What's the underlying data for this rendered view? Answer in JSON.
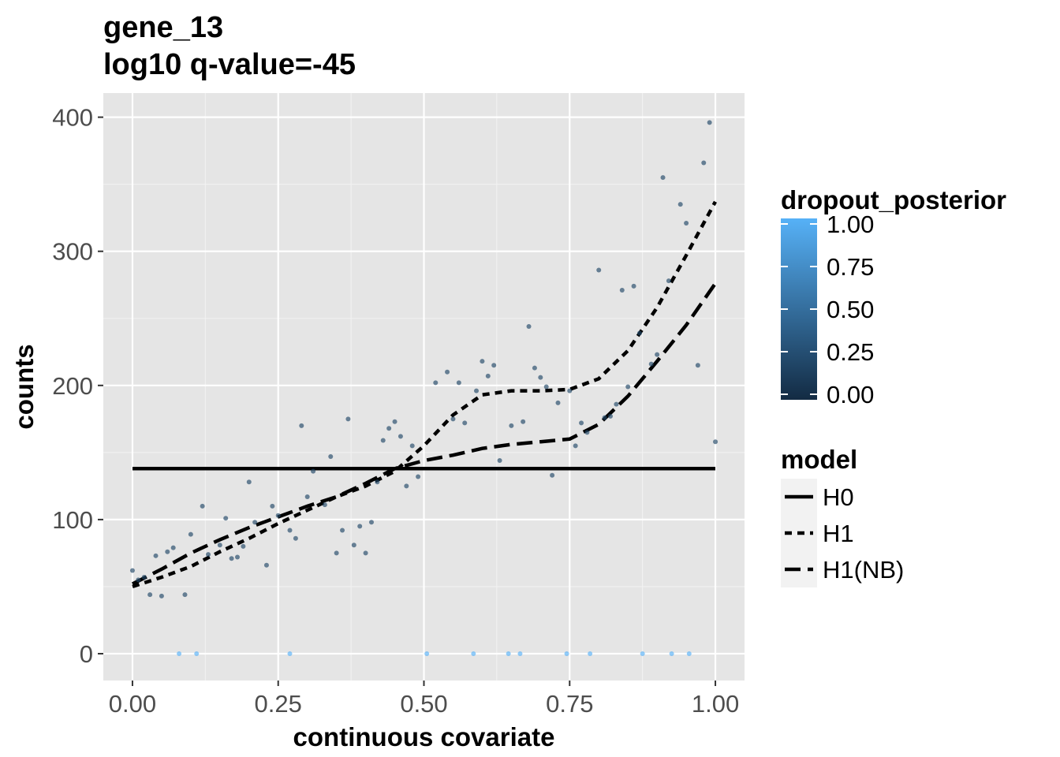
{
  "chart_data": {
    "type": "scatter",
    "title": "gene_13",
    "subtitle": "log10 q-value=-45",
    "xlabel": "continuous covariate",
    "ylabel": "counts",
    "xlim": [
      -0.05,
      1.05
    ],
    "ylim": [
      -20,
      418
    ],
    "x_ticks": [
      0.0,
      0.25,
      0.5,
      0.75,
      1.0
    ],
    "x_tick_labels": [
      "0.00",
      "0.25",
      "0.50",
      "0.75",
      "1.00"
    ],
    "y_ticks": [
      0,
      100,
      200,
      300,
      400
    ],
    "y_tick_labels": [
      "0",
      "100",
      "200",
      "300",
      "400"
    ],
    "grid": true,
    "background": "#e5e5e5",
    "color_legend": {
      "title": "dropout_posterior",
      "ticks": [
        1.0,
        0.75,
        0.5,
        0.25,
        0.0
      ],
      "tick_labels": [
        "1.00",
        "0.75",
        "0.50",
        "0.25",
        "0.00"
      ],
      "low_color": "#132b43",
      "high_color": "#56b1f7"
    },
    "model_legend": {
      "title": "model",
      "entries": [
        "H0",
        "H1",
        "H1(NB)"
      ]
    },
    "points": [
      {
        "x": 0.0,
        "y": 62,
        "dp": 0.2
      },
      {
        "x": 0.01,
        "y": 55,
        "dp": 0.2
      },
      {
        "x": 0.02,
        "y": 57,
        "dp": 0.2
      },
      {
        "x": 0.03,
        "y": 44,
        "dp": 0.2
      },
      {
        "x": 0.04,
        "y": 73,
        "dp": 0.2
      },
      {
        "x": 0.05,
        "y": 43,
        "dp": 0.2
      },
      {
        "x": 0.06,
        "y": 76,
        "dp": 0.2
      },
      {
        "x": 0.07,
        "y": 79,
        "dp": 0.2
      },
      {
        "x": 0.09,
        "y": 44,
        "dp": 0.2
      },
      {
        "x": 0.1,
        "y": 89,
        "dp": 0.2
      },
      {
        "x": 0.12,
        "y": 110,
        "dp": 0.2
      },
      {
        "x": 0.13,
        "y": 74,
        "dp": 0.2
      },
      {
        "x": 0.15,
        "y": 81,
        "dp": 0.2
      },
      {
        "x": 0.16,
        "y": 101,
        "dp": 0.2
      },
      {
        "x": 0.17,
        "y": 71,
        "dp": 0.2
      },
      {
        "x": 0.18,
        "y": 72,
        "dp": 0.2
      },
      {
        "x": 0.19,
        "y": 80,
        "dp": 0.2
      },
      {
        "x": 0.2,
        "y": 128,
        "dp": 0.2
      },
      {
        "x": 0.21,
        "y": 98,
        "dp": 0.2
      },
      {
        "x": 0.23,
        "y": 66,
        "dp": 0.2
      },
      {
        "x": 0.24,
        "y": 110,
        "dp": 0.2
      },
      {
        "x": 0.25,
        "y": 103,
        "dp": 0.2
      },
      {
        "x": 0.27,
        "y": 92,
        "dp": 0.2
      },
      {
        "x": 0.28,
        "y": 86,
        "dp": 0.2
      },
      {
        "x": 0.29,
        "y": 170,
        "dp": 0.2
      },
      {
        "x": 0.3,
        "y": 117,
        "dp": 0.2
      },
      {
        "x": 0.31,
        "y": 136,
        "dp": 0.2
      },
      {
        "x": 0.33,
        "y": 111,
        "dp": 0.2
      },
      {
        "x": 0.34,
        "y": 147,
        "dp": 0.2
      },
      {
        "x": 0.35,
        "y": 75,
        "dp": 0.2
      },
      {
        "x": 0.36,
        "y": 92,
        "dp": 0.2
      },
      {
        "x": 0.37,
        "y": 175,
        "dp": 0.2
      },
      {
        "x": 0.38,
        "y": 81,
        "dp": 0.2
      },
      {
        "x": 0.39,
        "y": 95,
        "dp": 0.2
      },
      {
        "x": 0.4,
        "y": 75,
        "dp": 0.2
      },
      {
        "x": 0.41,
        "y": 98,
        "dp": 0.2
      },
      {
        "x": 0.42,
        "y": 128,
        "dp": 0.2
      },
      {
        "x": 0.43,
        "y": 159,
        "dp": 0.2
      },
      {
        "x": 0.44,
        "y": 168,
        "dp": 0.2
      },
      {
        "x": 0.45,
        "y": 173,
        "dp": 0.2
      },
      {
        "x": 0.46,
        "y": 162,
        "dp": 0.2
      },
      {
        "x": 0.47,
        "y": 125,
        "dp": 0.2
      },
      {
        "x": 0.48,
        "y": 155,
        "dp": 0.2
      },
      {
        "x": 0.49,
        "y": 132,
        "dp": 0.2
      },
      {
        "x": 0.52,
        "y": 202,
        "dp": 0.2
      },
      {
        "x": 0.54,
        "y": 210,
        "dp": 0.2
      },
      {
        "x": 0.55,
        "y": 175,
        "dp": 0.2
      },
      {
        "x": 0.56,
        "y": 202,
        "dp": 0.2
      },
      {
        "x": 0.57,
        "y": 172,
        "dp": 0.2
      },
      {
        "x": 0.59,
        "y": 196,
        "dp": 0.2
      },
      {
        "x": 0.6,
        "y": 218,
        "dp": 0.2
      },
      {
        "x": 0.61,
        "y": 207,
        "dp": 0.2
      },
      {
        "x": 0.62,
        "y": 215,
        "dp": 0.2
      },
      {
        "x": 0.63,
        "y": 144,
        "dp": 0.2
      },
      {
        "x": 0.65,
        "y": 170,
        "dp": 0.2
      },
      {
        "x": 0.67,
        "y": 173,
        "dp": 0.2
      },
      {
        "x": 0.68,
        "y": 244,
        "dp": 0.2
      },
      {
        "x": 0.69,
        "y": 213,
        "dp": 0.2
      },
      {
        "x": 0.7,
        "y": 206,
        "dp": 0.2
      },
      {
        "x": 0.71,
        "y": 199,
        "dp": 0.2
      },
      {
        "x": 0.72,
        "y": 133,
        "dp": 0.2
      },
      {
        "x": 0.73,
        "y": 187,
        "dp": 0.2
      },
      {
        "x": 0.75,
        "y": 196,
        "dp": 0.2
      },
      {
        "x": 0.76,
        "y": 155,
        "dp": 0.2
      },
      {
        "x": 0.77,
        "y": 172,
        "dp": 0.2
      },
      {
        "x": 0.78,
        "y": 165,
        "dp": 0.2
      },
      {
        "x": 0.8,
        "y": 286,
        "dp": 0.2
      },
      {
        "x": 0.81,
        "y": 176,
        "dp": 0.2
      },
      {
        "x": 0.82,
        "y": 177,
        "dp": 0.2
      },
      {
        "x": 0.83,
        "y": 186,
        "dp": 0.2
      },
      {
        "x": 0.84,
        "y": 271,
        "dp": 0.2
      },
      {
        "x": 0.85,
        "y": 199,
        "dp": 0.2
      },
      {
        "x": 0.86,
        "y": 274,
        "dp": 0.2
      },
      {
        "x": 0.87,
        "y": 239,
        "dp": 0.2
      },
      {
        "x": 0.89,
        "y": 216,
        "dp": 0.2
      },
      {
        "x": 0.9,
        "y": 223,
        "dp": 0.2
      },
      {
        "x": 0.91,
        "y": 355,
        "dp": 0.2
      },
      {
        "x": 0.92,
        "y": 278,
        "dp": 0.2
      },
      {
        "x": 0.94,
        "y": 335,
        "dp": 0.2
      },
      {
        "x": 0.95,
        "y": 321,
        "dp": 0.2
      },
      {
        "x": 0.97,
        "y": 215,
        "dp": 0.2
      },
      {
        "x": 0.98,
        "y": 366,
        "dp": 0.2
      },
      {
        "x": 0.99,
        "y": 396,
        "dp": 0.2
      },
      {
        "x": 1.0,
        "y": 158,
        "dp": 0.2
      },
      {
        "x": 0.08,
        "y": 0,
        "dp": 1.0
      },
      {
        "x": 0.11,
        "y": 0,
        "dp": 1.0
      },
      {
        "x": 0.27,
        "y": 0,
        "dp": 1.0
      },
      {
        "x": 0.505,
        "y": 0,
        "dp": 1.0
      },
      {
        "x": 0.585,
        "y": 0,
        "dp": 1.0
      },
      {
        "x": 0.645,
        "y": 0,
        "dp": 1.0
      },
      {
        "x": 0.665,
        "y": 0,
        "dp": 1.0
      },
      {
        "x": 0.745,
        "y": 0,
        "dp": 1.0
      },
      {
        "x": 0.785,
        "y": 0,
        "dp": 1.0
      },
      {
        "x": 0.875,
        "y": 0,
        "dp": 1.0
      },
      {
        "x": 0.925,
        "y": 0,
        "dp": 1.0
      },
      {
        "x": 0.955,
        "y": 0,
        "dp": 1.0
      }
    ],
    "series": [
      {
        "name": "H0",
        "linetype": "solid",
        "x": [
          0.0,
          1.0
        ],
        "y": [
          138,
          138
        ]
      },
      {
        "name": "H1",
        "linetype": "dotted",
        "x": [
          0.0,
          0.05,
          0.1,
          0.15,
          0.2,
          0.25,
          0.3,
          0.35,
          0.4,
          0.45,
          0.5,
          0.55,
          0.6,
          0.65,
          0.7,
          0.75,
          0.8,
          0.85,
          0.9,
          0.95,
          1.0
        ],
        "y": [
          50,
          57,
          65,
          76,
          86,
          97,
          107,
          117,
          125,
          136,
          155,
          178,
          193,
          196,
          196,
          197,
          205,
          226,
          258,
          297,
          337
        ]
      },
      {
        "name": "H1(NB)",
        "linetype": "dashed",
        "x": [
          0.0,
          0.05,
          0.1,
          0.15,
          0.2,
          0.25,
          0.3,
          0.35,
          0.4,
          0.45,
          0.5,
          0.55,
          0.6,
          0.65,
          0.7,
          0.75,
          0.8,
          0.85,
          0.9,
          0.95,
          1.0
        ],
        "y": [
          52,
          63,
          75,
          85,
          94,
          102,
          110,
          117,
          127,
          138,
          144,
          148,
          153,
          156,
          158,
          160,
          171,
          192,
          218,
          245,
          276
        ]
      }
    ]
  }
}
